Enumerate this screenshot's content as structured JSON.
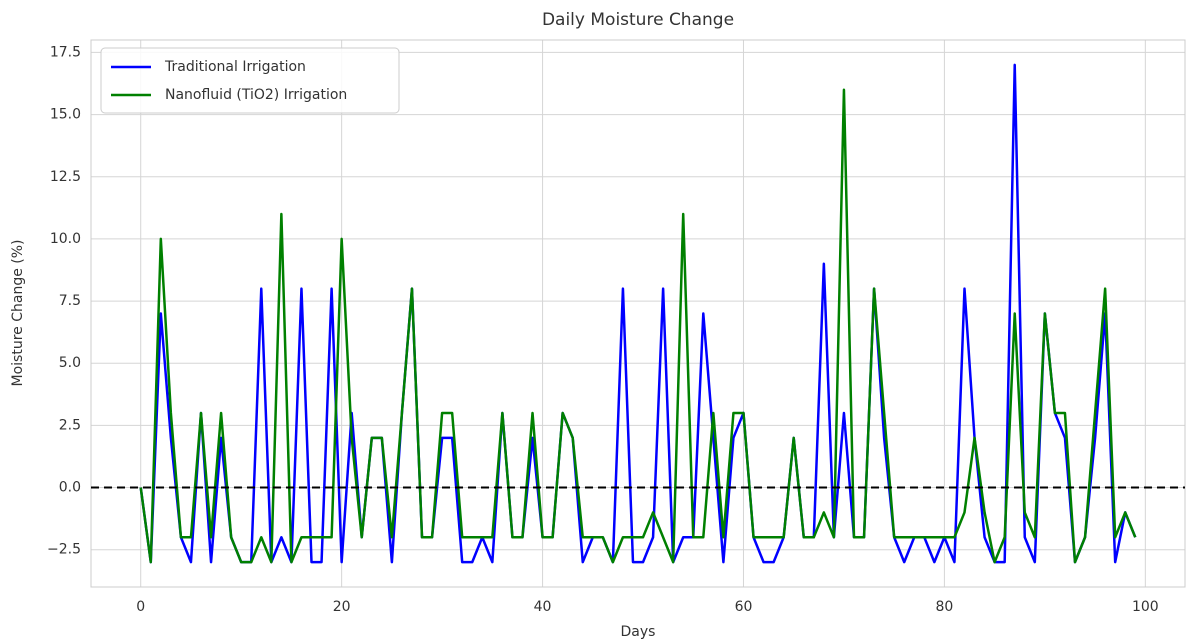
{
  "chart_data": {
    "type": "line",
    "title": "Daily Moisture Change",
    "xlabel": "Days",
    "ylabel": "Moisture Change (%)",
    "x": [
      0,
      1,
      2,
      3,
      4,
      5,
      6,
      7,
      8,
      9,
      10,
      11,
      12,
      13,
      14,
      15,
      16,
      17,
      18,
      19,
      20,
      21,
      22,
      23,
      24,
      25,
      26,
      27,
      28,
      29,
      30,
      31,
      32,
      33,
      34,
      35,
      36,
      37,
      38,
      39,
      40,
      41,
      42,
      43,
      44,
      45,
      46,
      47,
      48,
      49,
      50,
      51,
      52,
      53,
      54,
      55,
      56,
      57,
      58,
      59,
      60,
      61,
      62,
      63,
      64,
      65,
      66,
      67,
      68,
      69,
      70,
      71,
      72,
      73,
      74,
      75,
      76,
      77,
      78,
      79,
      80,
      81,
      82,
      83,
      84,
      85,
      86,
      87,
      88,
      89,
      90,
      91,
      92,
      93,
      94,
      95,
      96,
      97,
      98,
      99
    ],
    "series": [
      {
        "name": "Traditional Irrigation",
        "color": "#0000ff",
        "values": [
          0,
          -3,
          7,
          2,
          -2,
          -3,
          3,
          -3,
          2,
          -2,
          -3,
          -3,
          8,
          -3,
          -2,
          -3,
          8,
          -3,
          -3,
          8,
          -3,
          3,
          -2,
          2,
          2,
          -3,
          3,
          8,
          -2,
          -2,
          2,
          2,
          -3,
          -3,
          -2,
          -3,
          3,
          -2,
          -2,
          2,
          -2,
          -2,
          3,
          2,
          -3,
          -2,
          -2,
          -3,
          8,
          -3,
          -3,
          -2,
          8,
          -3,
          -2,
          -2,
          7,
          2,
          -3,
          2,
          3,
          -2,
          -3,
          -3,
          -2,
          2,
          -2,
          -2,
          9,
          -2,
          3,
          -2,
          -2,
          8,
          2,
          -2,
          -3,
          -2,
          -2,
          -3,
          -2,
          -3,
          8,
          2,
          -2,
          -3,
          -3,
          17,
          -2,
          -3,
          7,
          3,
          2,
          -3,
          -2,
          2,
          7,
          -3,
          -1,
          -2
        ]
      },
      {
        "name": "Nanofluid (TiO2) Irrigation",
        "color": "#008000",
        "values": [
          0,
          -3,
          10,
          3,
          -2,
          -2,
          3,
          -2,
          3,
          -2,
          -3,
          -3,
          -2,
          -3,
          11,
          -3,
          -2,
          -2,
          -2,
          -2,
          10,
          2,
          -2,
          2,
          2,
          -2,
          3,
          8,
          -2,
          -2,
          3,
          3,
          -2,
          -2,
          -2,
          -2,
          3,
          -2,
          -2,
          3,
          -2,
          -2,
          3,
          2,
          -2,
          -2,
          -2,
          -3,
          -2,
          -2,
          -2,
          -1,
          -2,
          -3,
          11,
          -2,
          -2,
          3,
          -2,
          3,
          3,
          -2,
          -2,
          -2,
          -2,
          2,
          -2,
          -2,
          -1,
          -2,
          16,
          -2,
          -2,
          8,
          3,
          -2,
          -2,
          -2,
          -2,
          -2,
          -2,
          -2,
          -1,
          2,
          -1,
          -3,
          -2,
          7,
          -1,
          -2,
          7,
          3,
          3,
          -3,
          -2,
          3,
          8,
          -2,
          -1,
          -2
        ]
      }
    ],
    "reference_line": {
      "y": 0,
      "color": "#000000",
      "style": "dashed"
    },
    "xlim": [
      -4.95,
      103.95
    ],
    "ylim": [
      -4,
      18
    ],
    "xticks": [
      0,
      20,
      40,
      60,
      80,
      100
    ],
    "yticks": [
      {
        "value": -2.5,
        "label": "−2.5"
      },
      {
        "value": 0,
        "label": "0.0"
      },
      2.5,
      {
        "value": 5,
        "label": "5.0"
      },
      7.5,
      {
        "value": 10,
        "label": "10.0"
      },
      12.5,
      {
        "value": 15,
        "label": "15.0"
      },
      17.5
    ],
    "grid": true,
    "legend": "upper left"
  }
}
